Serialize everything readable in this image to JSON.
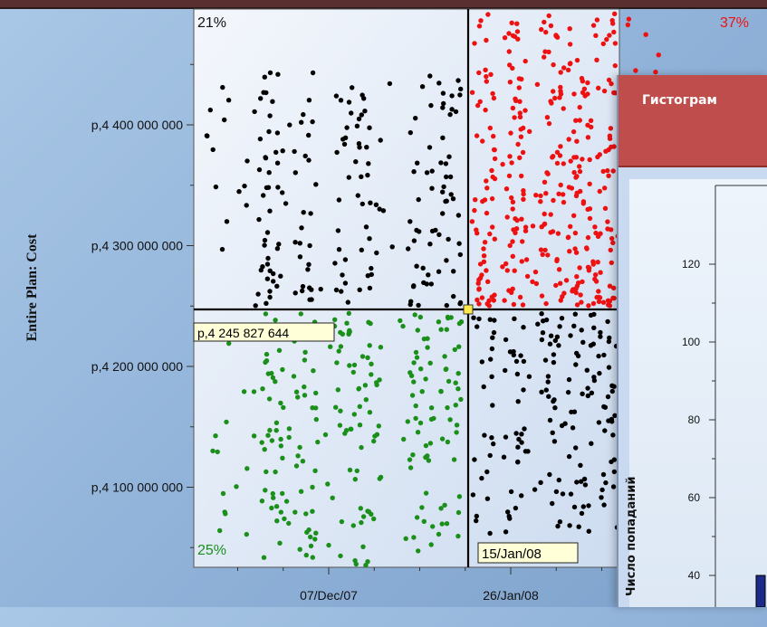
{
  "colors": {
    "red": "#ee1111",
    "green": "#1a8f1a",
    "black": "#000000",
    "header": "#bf4d4b"
  },
  "chart_data": [
    {
      "type": "scatter",
      "ylabel": "Entire Plan: Cost",
      "y_ticks": [
        "р,4 100 000 000",
        "р,4 200 000 000",
        "р,4 300 000 000",
        "р,4 400 000 000"
      ],
      "x_ticks": [
        "07/Dec/07",
        "26/Jan/08"
      ],
      "crosshair": {
        "x_label": "15/Jan/08",
        "y_label": "р,4 245 827 644"
      },
      "quadrant_percents": {
        "top_left": "21%",
        "top_right": "37%",
        "bottom_left": "25%"
      },
      "ylim": [
        4040000000,
        4480000000
      ],
      "xlim": [
        "2007-11-07",
        "2008-02-10"
      ],
      "series": [
        {
          "color": "black",
          "quadrant": "top-left",
          "approx_points": 210
        },
        {
          "color": "red",
          "quadrant": "top-right",
          "approx_points": 370
        },
        {
          "color": "green",
          "quadrant": "bottom-left",
          "approx_points": 250
        },
        {
          "color": "black",
          "quadrant": "bottom-right",
          "approx_points": 170
        }
      ]
    },
    {
      "type": "bar",
      "title": "Гистограм",
      "ylabel": "Число попаданий",
      "y_ticks": [
        "40",
        "60",
        "80",
        "100",
        "120"
      ]
    }
  ]
}
